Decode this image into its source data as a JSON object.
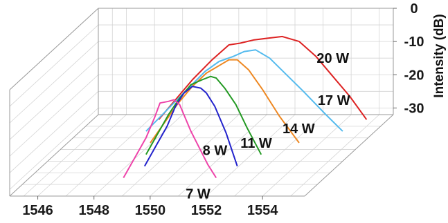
{
  "chart_data": {
    "type": "line",
    "style": "3d-waterfall",
    "title": "",
    "xlabel": "",
    "ylabel": "Intensity (dB)",
    "x_ticks": [
      "1546",
      "1548",
      "1550",
      "1552",
      "1554"
    ],
    "y_ticks": [
      "0",
      "-10",
      "-20",
      "-30"
    ],
    "xlim": [
      1545,
      1555.5
    ],
    "ylim": [
      -32,
      0
    ],
    "grid": true,
    "series": [
      {
        "name": "7 W",
        "color": "#ee44aa",
        "x": [
          1548.6,
          1549.0,
          1549.4,
          1549.7,
          1549.9,
          1550.2,
          1550.4,
          1550.6,
          1550.8,
          1551.0,
          1551.3,
          1551.6,
          1551.9
        ],
        "y": [
          -30,
          -24,
          -18,
          -12,
          -7.5,
          -7,
          -6.5,
          -8,
          -12,
          -16,
          -21,
          -26,
          -30
        ]
      },
      {
        "name": "8 W",
        "color": "#2222cc",
        "x": [
          1548.9,
          1549.3,
          1549.7,
          1550.0,
          1550.3,
          1550.6,
          1550.9,
          1551.1,
          1551.4,
          1551.8,
          1552.2
        ],
        "y": [
          -30,
          -24,
          -18,
          -12,
          -8,
          -6,
          -6.5,
          -8,
          -12,
          -20,
          -30
        ]
      },
      {
        "name": "11 W",
        "color": "#229922",
        "x": [
          1548.5,
          1548.9,
          1549.3,
          1549.7,
          1550.1,
          1550.5,
          1550.8,
          1551.0,
          1551.3,
          1551.7,
          1552.1,
          1552.6
        ],
        "y": [
          -30,
          -24,
          -18,
          -13,
          -9,
          -7.5,
          -6.5,
          -7,
          -10,
          -15,
          -22,
          -30
        ]
      },
      {
        "name": "14 W",
        "color": "#ee8822",
        "x": [
          1548.2,
          1548.7,
          1549.2,
          1549.7,
          1550.2,
          1550.6,
          1551.0,
          1551.3,
          1551.7,
          1552.2,
          1552.8,
          1553.5
        ],
        "y": [
          -30,
          -24,
          -18,
          -13,
          -9,
          -7,
          -5,
          -5,
          -8,
          -14,
          -22,
          -30
        ]
      },
      {
        "name": "17 W",
        "color": "#55bbee",
        "x": [
          1547.6,
          1548.3,
          1549.0,
          1549.7,
          1550.2,
          1550.7,
          1551.1,
          1551.5,
          1552.0,
          1552.6,
          1553.2,
          1554.0,
          1554.6
        ],
        "y": [
          -30,
          -24,
          -18,
          -12,
          -9,
          -7.5,
          -6,
          -5.5,
          -8,
          -13,
          -18,
          -25,
          -30
        ]
      },
      {
        "name": "20 W",
        "color": "#dd2222",
        "x": [
          1547.6,
          1548.2,
          1548.8,
          1549.5,
          1550.1,
          1550.5,
          1551.0,
          1551.5,
          1552.0,
          1552.6,
          1553.2,
          1553.8,
          1554.4,
          1555.0
        ],
        "y": [
          -30,
          -24,
          -18,
          -12,
          -7.5,
          -7,
          -6,
          -5.5,
          -5,
          -6.5,
          -11,
          -17,
          -23,
          -30
        ]
      }
    ]
  }
}
